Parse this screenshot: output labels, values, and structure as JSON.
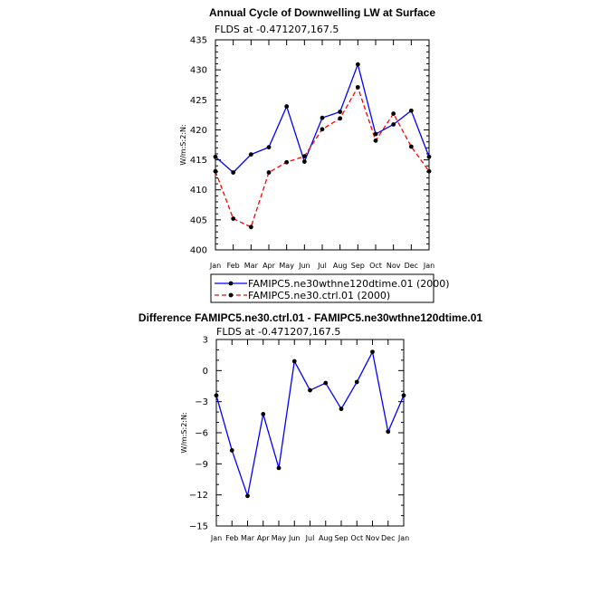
{
  "chart_data": [
    {
      "type": "line",
      "title": "Annual Cycle of Downwelling LW at Surface",
      "subtitle": "FLDS at -0.471207,167.5",
      "ylabel": "W/m:S:2:N:",
      "xlabel": "",
      "categories": [
        "Jan",
        "Feb",
        "Mar",
        "Apr",
        "May",
        "Jun",
        "Jul",
        "Aug",
        "Sep",
        "Oct",
        "Nov",
        "Dec",
        "Jan"
      ],
      "ylim": [
        400,
        435
      ],
      "yticks": [
        400,
        405,
        410,
        415,
        420,
        425,
        430,
        435
      ],
      "series": [
        {
          "name": "FAMIPC5.ne30wthne120dtime.01 (2000)",
          "color": "#0000ff",
          "dash": "solid",
          "values": [
            415.5,
            412.9,
            415.9,
            417.1,
            423.9,
            414.7,
            422.0,
            423.0,
            430.9,
            419.3,
            420.9,
            423.2,
            415.5
          ]
        },
        {
          "name": "FAMIPC5.ne30.ctrl.01 (2000)",
          "color": "#ff0000",
          "dash": "dashed",
          "values": [
            413.1,
            405.2,
            403.8,
            412.9,
            414.6,
            415.6,
            420.1,
            421.9,
            427.1,
            418.2,
            422.7,
            417.2,
            413.1
          ]
        }
      ]
    },
    {
      "type": "line",
      "title": "Difference FAMIPC5.ne30.ctrl.01 - FAMIPC5.ne30wthne120dtime.01",
      "subtitle": "FLDS at -0.471207,167.5",
      "ylabel": "W/m:S:2:N:",
      "xlabel": "",
      "categories": [
        "Jan",
        "Feb",
        "Mar",
        "Apr",
        "May",
        "Jun",
        "Jul",
        "Aug",
        "Sep",
        "Oct",
        "Nov",
        "Dec",
        "Jan"
      ],
      "ylim": [
        -15,
        3
      ],
      "yticks": [
        -15,
        -12,
        -9,
        -6,
        -3,
        0,
        3
      ],
      "ytick_labels": [
        "−15",
        "−12",
        "−9",
        "−6",
        "−3",
        "0",
        "3"
      ],
      "series": [
        {
          "name": "Difference",
          "color": "#0000ff",
          "dash": "solid",
          "values": [
            -2.4,
            -7.7,
            -12.1,
            -4.2,
            -9.4,
            0.9,
            -1.9,
            -1.2,
            -3.7,
            -1.1,
            1.8,
            -5.9,
            -2.4
          ]
        }
      ]
    }
  ]
}
